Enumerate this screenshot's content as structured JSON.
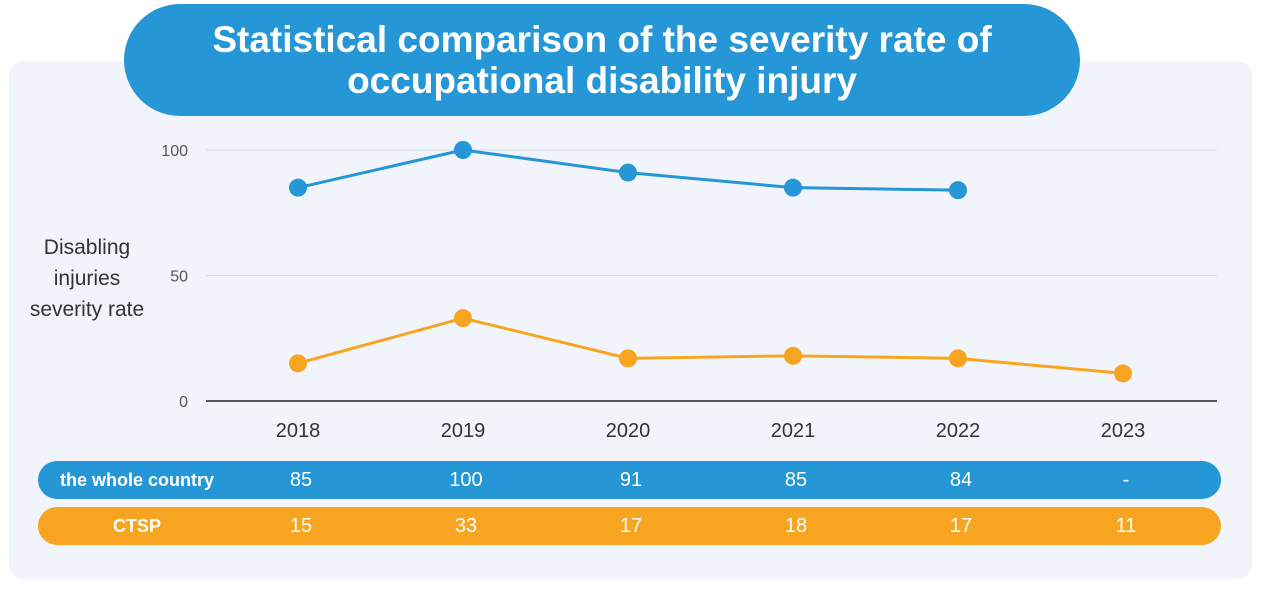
{
  "title": "Statistical comparison of the severity rate of occupational disability injury",
  "chart_data": {
    "type": "line",
    "title": "Statistical comparison of the severity rate of occupational disability injury",
    "ylabel": "Disabling injuries severity rate",
    "xlabel": "",
    "categories": [
      "2018",
      "2019",
      "2020",
      "2021",
      "2022",
      "2023"
    ],
    "yticks": [
      "0",
      "50",
      "100"
    ],
    "ylim": [
      0,
      100
    ],
    "grid": true,
    "series": [
      {
        "name": "the whole country",
        "color": "#2596d6",
        "values": [
          85,
          100,
          91,
          85,
          84,
          null
        ]
      },
      {
        "name": "CTSP",
        "color": "#f7a520",
        "values": [
          15,
          33,
          17,
          18,
          17,
          11
        ]
      }
    ]
  },
  "table": {
    "rows": [
      {
        "label": "the whole country",
        "values": [
          "85",
          "100",
          "91",
          "85",
          "84",
          "-"
        ]
      },
      {
        "label": "CTSP",
        "values": [
          "15",
          "33",
          "17",
          "18",
          "17",
          "11"
        ]
      }
    ]
  }
}
